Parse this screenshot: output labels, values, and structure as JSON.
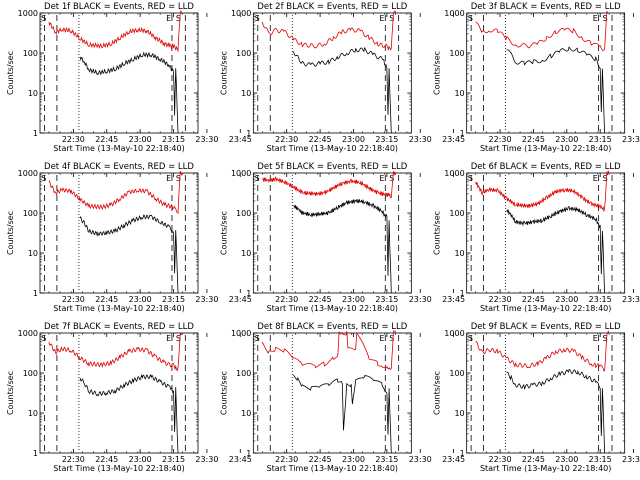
{
  "chart_data": [
    {
      "type": "line",
      "title": "Det 1f BLACK = Events, RED = LLD",
      "xlabel": "Start Time (13-May-10 22:18:40)",
      "ylabel": "Counts/sec",
      "xticks": [
        "22:30",
        "22:45",
        "23:00",
        "23:15",
        "23:30",
        "23:45"
      ],
      "yticks": [
        "1",
        "10",
        "100",
        "1000"
      ],
      "yscale": "log",
      "ylim": [
        1,
        1000
      ],
      "markers": [
        "S",
        "E",
        "S"
      ],
      "series": [
        {
          "color": "#e00000",
          "x": [
            0,
            3,
            6,
            10,
            14,
            18,
            24,
            28,
            32,
            36,
            40,
            44,
            48,
            52,
            54,
            56,
            57,
            58,
            59,
            60
          ],
          "values": [
            600,
            330,
            390,
            360,
            230,
            160,
            150,
            170,
            240,
            340,
            380,
            360,
            240,
            170,
            155,
            150,
            130,
            120,
            1000,
            1000
          ]
        },
        {
          "color": "#000000",
          "x": [
            14,
            16,
            18,
            22,
            26,
            30,
            34,
            38,
            42,
            46,
            50,
            54,
            55,
            56,
            56.5,
            57,
            58
          ],
          "values": [
            80,
            60,
            38,
            32,
            35,
            40,
            55,
            70,
            90,
            90,
            70,
            50,
            40,
            35,
            3,
            45,
            1
          ]
        }
      ]
    },
    {
      "type": "line",
      "title": "Det 2f BLACK = Events, RED = LLD",
      "xlabel": "Start Time (13-May-10 22:18:40)",
      "ylabel": "Counts/sec",
      "xticks": [
        "22:30",
        "22:45",
        "23:00",
        "23:15",
        "23:30",
        "23:45"
      ],
      "yticks": [
        "1",
        "10",
        "100",
        "1000"
      ],
      "yscale": "log",
      "ylim": [
        1,
        1000
      ],
      "markers": [
        "S",
        "E",
        "S"
      ],
      "series": [
        {
          "color": "#e00000",
          "x": [
            0,
            3,
            6,
            10,
            14,
            18,
            24,
            28,
            32,
            36,
            40,
            44,
            48,
            52,
            54,
            56,
            57,
            58,
            59,
            60
          ],
          "values": [
            600,
            300,
            370,
            340,
            220,
            160,
            150,
            170,
            240,
            340,
            380,
            360,
            240,
            170,
            155,
            150,
            130,
            120,
            1000,
            1000
          ]
        },
        {
          "color": "#000000",
          "x": [
            14,
            16,
            18,
            22,
            26,
            30,
            34,
            38,
            42,
            46,
            50,
            54,
            55,
            56,
            56.5,
            57,
            58
          ],
          "values": [
            110,
            80,
            55,
            50,
            55,
            60,
            80,
            100,
            120,
            120,
            90,
            70,
            55,
            45,
            3,
            40,
            1
          ]
        }
      ]
    },
    {
      "type": "line",
      "title": "Det 3f BLACK = Events, RED = LLD",
      "xlabel": "Start Time (13-May-10 22:18:40)",
      "ylabel": "Counts/sec",
      "xticks": [
        "22:30",
        "22:45",
        "23:00",
        "23:15",
        "23:30",
        "23:45"
      ],
      "yticks": [
        "1",
        "10",
        "100",
        "1000"
      ],
      "yscale": "log",
      "ylim": [
        1,
        1000
      ],
      "markers": [
        "S",
        "E",
        "S"
      ],
      "series": [
        {
          "color": "#e00000",
          "x": [
            0,
            3,
            6,
            10,
            14,
            18,
            24,
            28,
            32,
            36,
            40,
            44,
            48,
            52,
            54,
            56,
            57,
            58,
            59,
            60
          ],
          "values": [
            600,
            320,
            380,
            350,
            230,
            160,
            150,
            170,
            240,
            340,
            380,
            360,
            240,
            170,
            155,
            150,
            130,
            120,
            1000,
            1000
          ]
        },
        {
          "color": "#000000",
          "x": [
            14,
            16,
            18,
            22,
            26,
            30,
            34,
            38,
            42,
            46,
            50,
            54,
            55,
            56,
            56.5,
            57,
            58
          ],
          "values": [
            120,
            90,
            60,
            55,
            60,
            65,
            85,
            110,
            130,
            120,
            90,
            70,
            55,
            45,
            3,
            40,
            1
          ]
        }
      ]
    },
    {
      "type": "line",
      "title": "Det 4f BLACK = Events, RED = LLD",
      "xlabel": "Start Time (13-May-10 22:18:40)",
      "ylabel": "Counts/sec",
      "xticks": [
        "22:30",
        "22:45",
        "23:00",
        "23:15",
        "23:30",
        "23:45"
      ],
      "yticks": [
        "1",
        "10",
        "100",
        "1000"
      ],
      "yscale": "log",
      "ylim": [
        1,
        1000
      ],
      "markers": [
        "S",
        "E",
        "S"
      ],
      "series": [
        {
          "color": "#e00000",
          "x": [
            0,
            3,
            6,
            10,
            14,
            18,
            24,
            28,
            32,
            36,
            40,
            44,
            48,
            52,
            54,
            56,
            57,
            58,
            59,
            60
          ],
          "values": [
            600,
            320,
            380,
            350,
            220,
            150,
            140,
            160,
            230,
            330,
            370,
            350,
            230,
            160,
            150,
            140,
            120,
            110,
            1000,
            1000
          ]
        },
        {
          "color": "#000000",
          "x": [
            14,
            16,
            18,
            22,
            26,
            30,
            34,
            38,
            42,
            46,
            50,
            54,
            55,
            56,
            56.5,
            57,
            58
          ],
          "values": [
            75,
            55,
            35,
            30,
            32,
            36,
            50,
            65,
            80,
            80,
            60,
            45,
            38,
            32,
            3,
            40,
            1
          ]
        }
      ]
    },
    {
      "type": "line",
      "title": "Det 5f BLACK = Events, RED = LLD",
      "xlabel": "Start Time (13-May-10 22:18:40)",
      "ylabel": "Counts/sec",
      "xticks": [
        "22:30",
        "22:45",
        "23:00",
        "23:15",
        "23:30",
        "23:45"
      ],
      "yticks": [
        "1",
        "10",
        "100",
        "1000"
      ],
      "yscale": "log",
      "ylim": [
        1,
        1000
      ],
      "markers": [
        "S",
        "E",
        "S"
      ],
      "series": [
        {
          "color": "#e00000",
          "x": [
            0,
            3,
            6,
            10,
            14,
            18,
            24,
            28,
            32,
            36,
            40,
            44,
            48,
            52,
            54,
            56,
            57,
            58,
            59,
            60
          ],
          "values": [
            700,
            650,
            700,
            600,
            450,
            320,
            300,
            320,
            420,
            560,
            620,
            580,
            420,
            320,
            300,
            290,
            280,
            260,
            1000,
            1000
          ]
        },
        {
          "color": "#000000",
          "x": [
            14,
            16,
            18,
            22,
            26,
            30,
            34,
            38,
            42,
            46,
            50,
            54,
            55,
            56,
            56.5,
            57,
            58
          ],
          "values": [
            150,
            130,
            100,
            90,
            95,
            100,
            140,
            180,
            200,
            190,
            150,
            110,
            90,
            80,
            3,
            60,
            1
          ]
        }
      ]
    },
    {
      "type": "line",
      "title": "Det 6f BLACK = Events, RED = LLD",
      "xlabel": "Start Time (13-May-10 22:18:40)",
      "ylabel": "Counts/sec",
      "xticks": [
        "22:30",
        "22:45",
        "23:00",
        "23:15",
        "23:30",
        "23:45"
      ],
      "yticks": [
        "1",
        "10",
        "100",
        "1000"
      ],
      "yscale": "log",
      "ylim": [
        1,
        1000
      ],
      "markers": [
        "S",
        "E",
        "S"
      ],
      "series": [
        {
          "color": "#e00000",
          "x": [
            0,
            3,
            6,
            10,
            14,
            18,
            24,
            28,
            32,
            36,
            40,
            44,
            48,
            52,
            54,
            56,
            57,
            58,
            59,
            60
          ],
          "values": [
            600,
            320,
            390,
            360,
            230,
            160,
            150,
            170,
            240,
            340,
            380,
            360,
            240,
            170,
            155,
            150,
            130,
            120,
            1000,
            1000
          ]
        },
        {
          "color": "#000000",
          "x": [
            14,
            16,
            18,
            22,
            26,
            30,
            34,
            38,
            42,
            46,
            50,
            54,
            55,
            56,
            56.5,
            57,
            58
          ],
          "values": [
            120,
            90,
            60,
            55,
            60,
            65,
            85,
            110,
            130,
            120,
            90,
            70,
            55,
            45,
            3,
            40,
            1
          ]
        }
      ]
    },
    {
      "type": "line",
      "title": "Det 7f BLACK = Events, RED = LLD",
      "xlabel": "Start Time (13-May-10 22:18:40)",
      "ylabel": "Counts/sec",
      "xticks": [
        "22:30",
        "22:45",
        "23:00",
        "23:15",
        "23:30",
        "23:45"
      ],
      "yticks": [
        "1",
        "10",
        "100",
        "1000"
      ],
      "yscale": "log",
      "ylim": [
        1,
        1000
      ],
      "markers": [
        "S",
        "E",
        "S"
      ],
      "series": [
        {
          "color": "#e00000",
          "x": [
            0,
            3,
            6,
            10,
            14,
            18,
            24,
            28,
            32,
            36,
            40,
            44,
            48,
            52,
            54,
            56,
            57,
            58,
            59,
            60
          ],
          "values": [
            600,
            330,
            400,
            370,
            240,
            170,
            160,
            180,
            250,
            350,
            390,
            370,
            250,
            180,
            160,
            155,
            135,
            125,
            1000,
            1000
          ]
        },
        {
          "color": "#000000",
          "x": [
            14,
            16,
            18,
            22,
            26,
            30,
            34,
            38,
            42,
            46,
            50,
            54,
            55,
            56,
            56.5,
            57,
            58
          ],
          "values": [
            75,
            55,
            35,
            30,
            32,
            36,
            50,
            65,
            80,
            80,
            60,
            45,
            38,
            32,
            3,
            40,
            1
          ]
        }
      ]
    },
    {
      "type": "line",
      "title": "Det 8f BLACK = Events, RED = LLD",
      "xlabel": "Start Time (13-May-10 22:18:40)",
      "ylabel": "Counts/sec",
      "xticks": [
        "22:30",
        "22:45",
        "23:00",
        "23:15",
        "23:30",
        "23:45"
      ],
      "yticks": [
        "1",
        "10",
        "100",
        "1000"
      ],
      "yscale": "log",
      "ylim": [
        1,
        1000
      ],
      "markers": [
        "S",
        "E",
        "S"
      ],
      "series": [
        {
          "color": "#e00000",
          "x": [
            0,
            3,
            6,
            10,
            14,
            18,
            24,
            28,
            32,
            34,
            34.5,
            38,
            38.5,
            42,
            42.5,
            48,
            52,
            54,
            56,
            57,
            58,
            59,
            60
          ],
          "values": [
            600,
            330,
            390,
            360,
            230,
            160,
            150,
            170,
            240,
            300,
            1000,
            1000,
            380,
            380,
            1000,
            240,
            170,
            155,
            150,
            130,
            120,
            1000,
            1000
          ]
        },
        {
          "color": "#000000",
          "x": [
            14,
            16,
            18,
            22,
            26,
            30,
            34,
            36,
            36.5,
            38,
            40,
            40.5,
            42,
            46,
            50,
            54,
            55,
            56,
            56.5,
            57,
            58
          ],
          "values": [
            90,
            70,
            45,
            40,
            45,
            50,
            65,
            60,
            4,
            55,
            50,
            15,
            60,
            80,
            65,
            50,
            40,
            35,
            3,
            40,
            1
          ]
        }
      ]
    },
    {
      "type": "line",
      "title": "Det 9f BLACK = Events, RED = LLD",
      "xlabel": "Start Time (13-May-10 22:18:40)",
      "ylabel": "Counts/sec",
      "xticks": [
        "22:30",
        "22:45",
        "23:00",
        "23:15",
        "23:30",
        "23:45"
      ],
      "yticks": [
        "1",
        "10",
        "100",
        "1000"
      ],
      "yscale": "log",
      "ylim": [
        1,
        1000
      ],
      "markers": [
        "S",
        "E",
        "S"
      ],
      "series": [
        {
          "color": "#e00000",
          "x": [
            0,
            3,
            6,
            10,
            14,
            18,
            24,
            28,
            32,
            36,
            40,
            44,
            48,
            52,
            54,
            56,
            57,
            58,
            59,
            60
          ],
          "values": [
            600,
            320,
            380,
            350,
            230,
            160,
            150,
            170,
            240,
            340,
            380,
            360,
            240,
            170,
            155,
            150,
            130,
            120,
            1000,
            1000
          ]
        },
        {
          "color": "#000000",
          "x": [
            14,
            16,
            18,
            22,
            26,
            30,
            34,
            38,
            42,
            46,
            50,
            54,
            55,
            56,
            56.5,
            57,
            58
          ],
          "values": [
            100,
            75,
            50,
            45,
            50,
            55,
            75,
            95,
            110,
            105,
            80,
            60,
            50,
            42,
            3,
            40,
            1
          ]
        }
      ]
    }
  ]
}
